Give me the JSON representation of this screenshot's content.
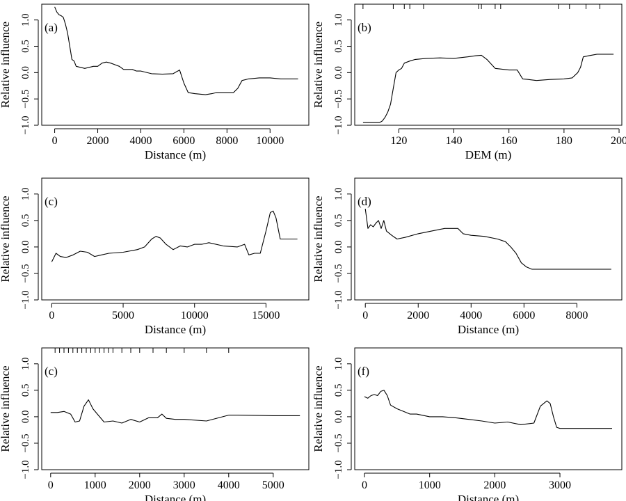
{
  "chart_data": [
    {
      "type": "line",
      "panel_label": "(a)",
      "xlabel": "Distance (m)",
      "ylabel": "Relative influence",
      "xlim": [
        -600,
        11800
      ],
      "ylim": [
        -1.0,
        1.3
      ],
      "xticks": [
        0,
        2000,
        4000,
        6000,
        8000,
        10000
      ],
      "yticks": [
        -1.0,
        -0.5,
        0.0,
        0.5,
        1.0
      ],
      "rug": [],
      "x": [
        0,
        100,
        200,
        300,
        400,
        500,
        600,
        700,
        800,
        900,
        1000,
        1200,
        1400,
        1600,
        1800,
        2000,
        2200,
        2400,
        2600,
        2800,
        3000,
        3200,
        3400,
        3600,
        3800,
        4000,
        4500,
        5000,
        5500,
        5800,
        6000,
        6200,
        6500,
        7000,
        7300,
        7500,
        8000,
        8300,
        8500,
        8700,
        9000,
        9500,
        10000,
        10500,
        11300
      ],
      "y": [
        1.25,
        1.15,
        1.1,
        1.08,
        1.05,
        0.92,
        0.75,
        0.5,
        0.25,
        0.22,
        0.12,
        0.1,
        0.08,
        0.1,
        0.12,
        0.12,
        0.18,
        0.2,
        0.18,
        0.15,
        0.12,
        0.06,
        0.06,
        0.06,
        0.03,
        0.03,
        -0.02,
        -0.03,
        -0.02,
        0.05,
        -0.2,
        -0.38,
        -0.4,
        -0.42,
        -0.4,
        -0.38,
        -0.38,
        -0.38,
        -0.3,
        -0.15,
        -0.12,
        -0.1,
        -0.1,
        -0.12,
        -0.12
      ]
    },
    {
      "type": "line",
      "panel_label": "(b)",
      "xlabel": "DEM (m)",
      "ylabel": "Relative influence",
      "xlim": [
        104,
        201
      ],
      "ylim": [
        -1.0,
        1.3
      ],
      "xticks": [
        120,
        140,
        160,
        180,
        200
      ],
      "yticks": [
        -1.0,
        -0.5,
        0.0,
        0.5,
        1.0
      ],
      "rug": [
        107,
        118,
        122,
        124,
        129,
        149,
        150,
        155,
        157,
        178,
        182,
        188,
        193
      ],
      "x": [
        107,
        111,
        113,
        114,
        115,
        116,
        117,
        118,
        119,
        120,
        121,
        122,
        124,
        126,
        130,
        135,
        140,
        145,
        148,
        150,
        152,
        155,
        160,
        163,
        165,
        167,
        170,
        175,
        180,
        183,
        185,
        186,
        187,
        189,
        192,
        198
      ],
      "y": [
        -0.95,
        -0.95,
        -0.95,
        -0.92,
        -0.85,
        -0.75,
        -0.6,
        -0.3,
        0.0,
        0.05,
        0.08,
        0.18,
        0.22,
        0.25,
        0.27,
        0.28,
        0.27,
        0.3,
        0.32,
        0.33,
        0.25,
        0.08,
        0.05,
        0.05,
        -0.12,
        -0.13,
        -0.15,
        -0.13,
        -0.12,
        -0.1,
        0.0,
        0.1,
        0.3,
        0.32,
        0.35,
        0.35
      ]
    },
    {
      "type": "line",
      "panel_label": "(c)",
      "xlabel": "Distance (m)",
      "ylabel": "Relative influence",
      "xlim": [
        -700,
        18000
      ],
      "ylim": [
        -1.0,
        1.3
      ],
      "xticks": [
        0,
        5000,
        10000,
        15000
      ],
      "yticks": [
        -1.0,
        -0.5,
        0.0,
        0.5,
        1.0
      ],
      "rug": [],
      "x": [
        0,
        300,
        600,
        1000,
        1500,
        2000,
        2500,
        3000,
        3500,
        4000,
        5000,
        6000,
        6500,
        7000,
        7300,
        7600,
        8000,
        8500,
        9000,
        9500,
        10000,
        10500,
        11000,
        12000,
        13000,
        13500,
        13800,
        14200,
        14600,
        15000,
        15300,
        15500,
        15700,
        16000,
        16500,
        17200
      ],
      "y": [
        -0.28,
        -0.12,
        -0.18,
        -0.2,
        -0.15,
        -0.08,
        -0.1,
        -0.18,
        -0.15,
        -0.12,
        -0.1,
        -0.05,
        0.0,
        0.15,
        0.2,
        0.17,
        0.05,
        -0.05,
        0.02,
        0.0,
        0.05,
        0.05,
        0.08,
        0.02,
        0.0,
        0.05,
        -0.15,
        -0.12,
        -0.12,
        0.3,
        0.65,
        0.68,
        0.55,
        0.15,
        0.15,
        0.15
      ]
    },
    {
      "type": "line",
      "panel_label": "(d)",
      "xlabel": "Distance (m)",
      "ylabel": "Relative influence",
      "xlim": [
        -400,
        9700
      ],
      "ylim": [
        -1.0,
        1.3
      ],
      "xticks": [
        0,
        2000,
        4000,
        6000,
        8000
      ],
      "yticks": [
        -1.0,
        -0.5,
        0.0,
        0.5,
        1.0
      ],
      "rug": [],
      "x": [
        0,
        100,
        200,
        300,
        400,
        500,
        600,
        700,
        800,
        1000,
        1200,
        1500,
        2000,
        2500,
        3000,
        3500,
        3700,
        4000,
        4500,
        5000,
        5300,
        5500,
        5700,
        5900,
        6100,
        6300,
        7000,
        8000,
        9300
      ],
      "y": [
        0.72,
        0.35,
        0.42,
        0.38,
        0.45,
        0.5,
        0.35,
        0.5,
        0.3,
        0.22,
        0.15,
        0.18,
        0.25,
        0.3,
        0.35,
        0.35,
        0.25,
        0.22,
        0.2,
        0.15,
        0.1,
        0.0,
        -0.12,
        -0.3,
        -0.38,
        -0.42,
        -0.42,
        -0.42,
        -0.42
      ]
    },
    {
      "type": "line",
      "panel_label": "(c)",
      "xlabel": "Distance (m)",
      "ylabel": "Relative influence",
      "xlim": [
        -200,
        5800
      ],
      "ylim": [
        -1.0,
        1.3
      ],
      "xticks": [
        0,
        1000,
        2000,
        3000,
        4000,
        5000
      ],
      "yticks": [
        -1.0,
        -0.5,
        0.0,
        0.5,
        1.0
      ],
      "rug": [
        100,
        200,
        300,
        400,
        500,
        600,
        700,
        800,
        900,
        1000,
        1100,
        1200,
        1300,
        1400,
        1600,
        1800,
        2000,
        2300,
        2600,
        3000,
        3500,
        4000
      ],
      "x": [
        0,
        150,
        300,
        450,
        550,
        650,
        750,
        850,
        950,
        1050,
        1200,
        1400,
        1600,
        1800,
        2000,
        2200,
        2400,
        2500,
        2600,
        2800,
        3000,
        3500,
        4000,
        4200,
        5000,
        5600
      ],
      "y": [
        0.08,
        0.08,
        0.1,
        0.05,
        -0.1,
        -0.08,
        0.2,
        0.32,
        0.15,
        0.05,
        -0.1,
        -0.08,
        -0.12,
        -0.05,
        -0.1,
        -0.02,
        -0.02,
        0.05,
        -0.03,
        -0.05,
        -0.05,
        -0.08,
        0.03,
        0.03,
        0.02,
        0.02
      ]
    },
    {
      "type": "line",
      "panel_label": "(f)",
      "xlabel": "Distance (m)",
      "ylabel": "Relative influence",
      "xlim": [
        -150,
        3950
      ],
      "ylim": [
        -1.0,
        1.3
      ],
      "xticks": [
        0,
        1000,
        2000,
        3000
      ],
      "yticks": [
        -1.0,
        -0.5,
        0.0,
        0.5,
        1.0
      ],
      "rug": [],
      "x": [
        0,
        50,
        100,
        150,
        200,
        250,
        300,
        350,
        400,
        500,
        600,
        700,
        800,
        1000,
        1200,
        1400,
        1600,
        1800,
        2000,
        2200,
        2400,
        2600,
        2700,
        2800,
        2850,
        2900,
        2950,
        3000,
        3200,
        3800
      ],
      "y": [
        0.38,
        0.35,
        0.4,
        0.42,
        0.4,
        0.48,
        0.5,
        0.4,
        0.22,
        0.15,
        0.1,
        0.05,
        0.05,
        0.0,
        0.0,
        -0.02,
        -0.05,
        -0.08,
        -0.12,
        -0.1,
        -0.15,
        -0.12,
        0.2,
        0.3,
        0.25,
        0.0,
        -0.2,
        -0.22,
        -0.22,
        -0.22
      ]
    }
  ]
}
